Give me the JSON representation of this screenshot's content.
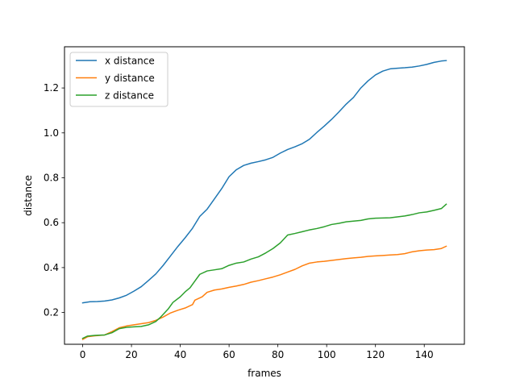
{
  "chart_data": {
    "type": "line",
    "title": "",
    "xlabel": "frames",
    "ylabel": "distance",
    "xlim": [
      -7.45,
      156.45
    ],
    "ylim": [
      0.0585,
      1.3835
    ],
    "xticks": [
      0,
      20,
      40,
      60,
      80,
      100,
      120,
      140
    ],
    "yticks": [
      0.2,
      0.4,
      0.6,
      0.8,
      1.0,
      1.2
    ],
    "ytick_labels": [
      "0.2",
      "0.4",
      "0.6",
      "0.8",
      "1.0",
      "1.2"
    ],
    "grid": false,
    "legend": "upper-left",
    "series": [
      {
        "name": "x distance",
        "color": "#1f77b4",
        "points": [
          [
            0,
            0.243
          ],
          [
            3,
            0.248
          ],
          [
            6,
            0.249
          ],
          [
            9,
            0.251
          ],
          [
            12,
            0.256
          ],
          [
            15,
            0.265
          ],
          [
            18,
            0.277
          ],
          [
            21,
            0.295
          ],
          [
            24,
            0.315
          ],
          [
            27,
            0.343
          ],
          [
            30,
            0.372
          ],
          [
            33,
            0.41
          ],
          [
            36,
            0.452
          ],
          [
            39,
            0.494
          ],
          [
            42,
            0.533
          ],
          [
            45,
            0.575
          ],
          [
            48,
            0.628
          ],
          [
            51,
            0.66
          ],
          [
            54,
            0.706
          ],
          [
            57,
            0.752
          ],
          [
            60,
            0.805
          ],
          [
            63,
            0.836
          ],
          [
            66,
            0.855
          ],
          [
            69,
            0.865
          ],
          [
            72,
            0.872
          ],
          [
            75,
            0.88
          ],
          [
            78,
            0.891
          ],
          [
            81,
            0.91
          ],
          [
            84,
            0.926
          ],
          [
            87,
            0.938
          ],
          [
            90,
            0.952
          ],
          [
            93,
            0.972
          ],
          [
            96,
            1.002
          ],
          [
            99,
            1.03
          ],
          [
            102,
            1.06
          ],
          [
            105,
            1.093
          ],
          [
            108,
            1.128
          ],
          [
            111,
            1.158
          ],
          [
            114,
            1.2
          ],
          [
            117,
            1.232
          ],
          [
            120,
            1.258
          ],
          [
            123,
            1.275
          ],
          [
            126,
            1.285
          ],
          [
            129,
            1.288
          ],
          [
            132,
            1.29
          ],
          [
            135,
            1.293
          ],
          [
            138,
            1.298
          ],
          [
            141,
            1.305
          ],
          [
            144,
            1.314
          ],
          [
            147,
            1.32
          ],
          [
            149,
            1.322
          ]
        ]
      },
      {
        "name": "y distance",
        "color": "#ff7f0e",
        "points": [
          [
            0,
            0.08
          ],
          [
            2,
            0.092
          ],
          [
            5,
            0.096
          ],
          [
            9,
            0.1
          ],
          [
            12,
            0.115
          ],
          [
            15,
            0.132
          ],
          [
            18,
            0.14
          ],
          [
            21,
            0.145
          ],
          [
            24,
            0.15
          ],
          [
            27,
            0.155
          ],
          [
            30,
            0.165
          ],
          [
            33,
            0.18
          ],
          [
            36,
            0.198
          ],
          [
            39,
            0.21
          ],
          [
            42,
            0.22
          ],
          [
            45,
            0.235
          ],
          [
            46,
            0.255
          ],
          [
            49,
            0.27
          ],
          [
            51,
            0.29
          ],
          [
            54,
            0.3
          ],
          [
            57,
            0.305
          ],
          [
            60,
            0.312
          ],
          [
            63,
            0.318
          ],
          [
            66,
            0.325
          ],
          [
            69,
            0.335
          ],
          [
            72,
            0.342
          ],
          [
            75,
            0.35
          ],
          [
            78,
            0.358
          ],
          [
            81,
            0.368
          ],
          [
            84,
            0.38
          ],
          [
            87,
            0.392
          ],
          [
            90,
            0.408
          ],
          [
            93,
            0.42
          ],
          [
            96,
            0.425
          ],
          [
            99,
            0.428
          ],
          [
            102,
            0.432
          ],
          [
            105,
            0.436
          ],
          [
            108,
            0.44
          ],
          [
            111,
            0.443
          ],
          [
            114,
            0.446
          ],
          [
            117,
            0.45
          ],
          [
            120,
            0.452
          ],
          [
            123,
            0.454
          ],
          [
            126,
            0.456
          ],
          [
            129,
            0.458
          ],
          [
            132,
            0.462
          ],
          [
            135,
            0.47
          ],
          [
            138,
            0.475
          ],
          [
            141,
            0.478
          ],
          [
            144,
            0.48
          ],
          [
            147,
            0.485
          ],
          [
            149,
            0.495
          ]
        ]
      },
      {
        "name": "z distance",
        "color": "#2ca02c",
        "points": [
          [
            0,
            0.085
          ],
          [
            2,
            0.095
          ],
          [
            5,
            0.098
          ],
          [
            9,
            0.1
          ],
          [
            12,
            0.11
          ],
          [
            15,
            0.128
          ],
          [
            18,
            0.134
          ],
          [
            21,
            0.136
          ],
          [
            24,
            0.138
          ],
          [
            27,
            0.145
          ],
          [
            30,
            0.16
          ],
          [
            32,
            0.18
          ],
          [
            35,
            0.215
          ],
          [
            37,
            0.245
          ],
          [
            40,
            0.27
          ],
          [
            42,
            0.292
          ],
          [
            44,
            0.31
          ],
          [
            46,
            0.34
          ],
          [
            48,
            0.37
          ],
          [
            51,
            0.385
          ],
          [
            54,
            0.39
          ],
          [
            57,
            0.395
          ],
          [
            60,
            0.41
          ],
          [
            63,
            0.42
          ],
          [
            66,
            0.425
          ],
          [
            69,
            0.438
          ],
          [
            72,
            0.448
          ],
          [
            75,
            0.465
          ],
          [
            78,
            0.485
          ],
          [
            81,
            0.51
          ],
          [
            84,
            0.545
          ],
          [
            87,
            0.552
          ],
          [
            90,
            0.56
          ],
          [
            93,
            0.568
          ],
          [
            96,
            0.574
          ],
          [
            99,
            0.582
          ],
          [
            102,
            0.592
          ],
          [
            105,
            0.597
          ],
          [
            108,
            0.604
          ],
          [
            111,
            0.607
          ],
          [
            114,
            0.61
          ],
          [
            117,
            0.617
          ],
          [
            120,
            0.62
          ],
          [
            123,
            0.621
          ],
          [
            126,
            0.622
          ],
          [
            129,
            0.626
          ],
          [
            132,
            0.63
          ],
          [
            135,
            0.636
          ],
          [
            138,
            0.644
          ],
          [
            141,
            0.648
          ],
          [
            144,
            0.655
          ],
          [
            147,
            0.663
          ],
          [
            149,
            0.682
          ]
        ]
      }
    ]
  }
}
